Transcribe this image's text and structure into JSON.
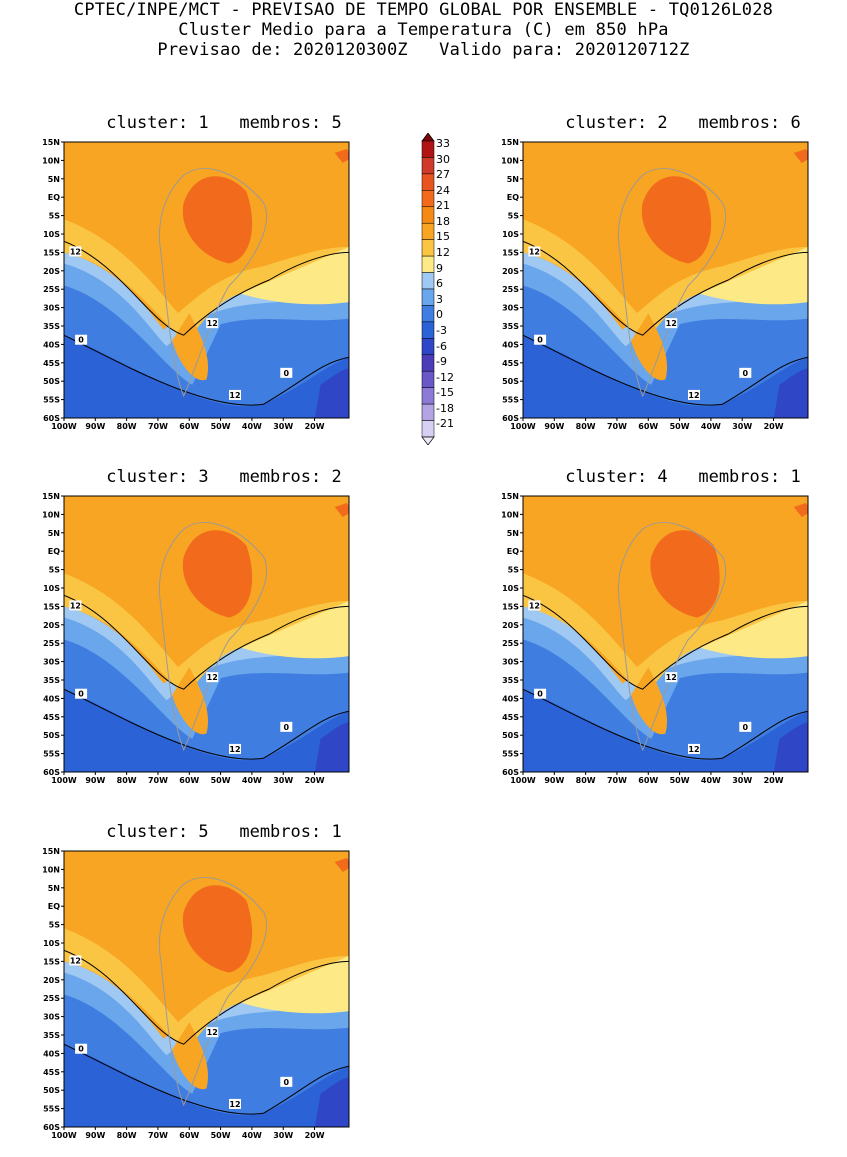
{
  "header": {
    "line1": "CPTEC/INPE/MCT - PREVISAO DE TEMPO GLOBAL POR ENSEMBLE - TQ0126L028",
    "line2": "Cluster Medio para a Temperatura (C) em 850 hPa",
    "line3": "Previsao de: 2020120300Z   Valido para: 2020120712Z"
  },
  "panels": [
    {
      "title": "cluster: 1   membros: 5"
    },
    {
      "title": "cluster: 2   membros: 6"
    },
    {
      "title": "cluster: 3   membros: 2"
    },
    {
      "title": "cluster: 4   membros: 1"
    },
    {
      "title": "cluster: 5   membros: 1"
    }
  ],
  "axes": {
    "lat_ticks": [
      "15N",
      "10N",
      "5N",
      "EQ",
      "5S",
      "10S",
      "15S",
      "20S",
      "25S",
      "30S",
      "35S",
      "40S",
      "45S",
      "50S",
      "55S",
      "60S"
    ],
    "lon_ticks": [
      "100W",
      "90W",
      "80W",
      "70W",
      "60W",
      "50W",
      "40W",
      "30W",
      "20W"
    ]
  },
  "contour_labels": {
    "c12": "12",
    "c0": "0"
  },
  "colorbar": {
    "ticks": [
      "33",
      "30",
      "27",
      "24",
      "21",
      "18",
      "15",
      "12",
      "9",
      "6",
      "3",
      "0",
      "-3",
      "-6",
      "-9",
      "-12",
      "-15",
      "-18",
      "-21"
    ],
    "colors": [
      "#7a0a0a",
      "#b01414",
      "#cf3a2a",
      "#e8541f",
      "#f26a1c",
      "#f48a13",
      "#f7a522",
      "#fbc544",
      "#fde985",
      "#9fc8f2",
      "#6aa6ec",
      "#3f7ee0",
      "#2b62d6",
      "#2f47c6",
      "#4b3cb8",
      "#6a58c8",
      "#8c7ad6",
      "#b4a4e4",
      "#d8d0f2",
      "#eeeaf8"
    ]
  }
}
